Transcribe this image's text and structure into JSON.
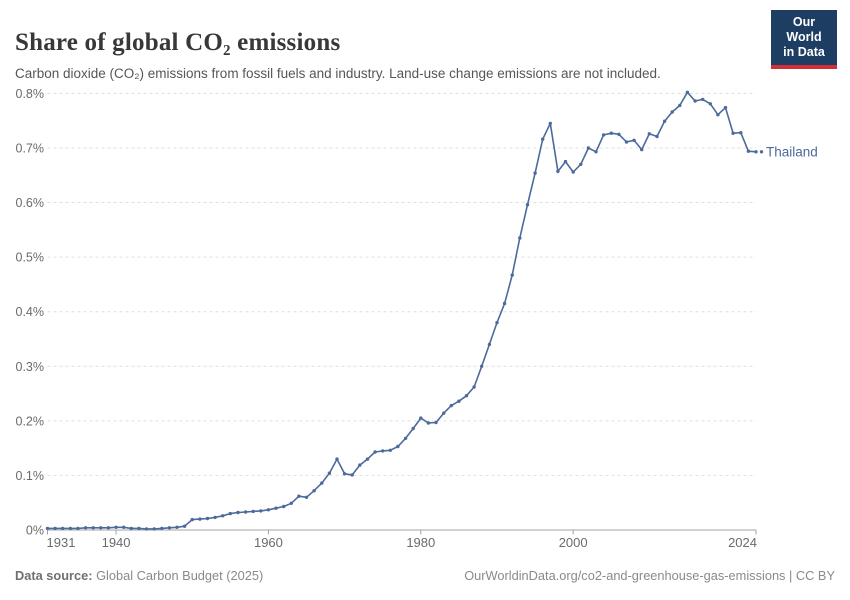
{
  "header": {
    "title": "Share of global CO₂ emissions",
    "subtitle": "Carbon dioxide (CO₂) emissions from fossil fuels and industry. Land-use change emissions are not included.",
    "logo": {
      "line1": "Our World",
      "line2": "in Data",
      "bg_color": "#1d3d63",
      "accent_color": "#d13038"
    }
  },
  "chart_data": {
    "type": "line",
    "title": "Share of global CO₂ emissions",
    "entity": "Thailand",
    "xlabel": "",
    "ylabel": "",
    "xlim": [
      1931,
      2024
    ],
    "ylim": [
      0,
      0.8
    ],
    "grid": true,
    "legend_position": "end-of-line",
    "x_ticks": [
      {
        "v": 1931,
        "label": "1931"
      },
      {
        "v": 1940,
        "label": "1940"
      },
      {
        "v": 1960,
        "label": "1960"
      },
      {
        "v": 1980,
        "label": "1980"
      },
      {
        "v": 2000,
        "label": "2000"
      },
      {
        "v": 2024,
        "label": "2024"
      }
    ],
    "y_ticks": [
      {
        "v": 0,
        "label": "0%"
      },
      {
        "v": 0.1,
        "label": "0.1%"
      },
      {
        "v": 0.2,
        "label": "0.2%"
      },
      {
        "v": 0.3,
        "label": "0.3%"
      },
      {
        "v": 0.4,
        "label": "0.4%"
      },
      {
        "v": 0.5,
        "label": "0.5%"
      },
      {
        "v": 0.6,
        "label": "0.6%"
      },
      {
        "v": 0.7,
        "label": "0.7%"
      },
      {
        "v": 0.8,
        "label": "0.8%"
      }
    ],
    "series": [
      {
        "name": "Thailand",
        "color": "#4c6a9c",
        "x_start": 1931,
        "x_step": 1,
        "values": [
          0.003,
          0.003,
          0.003,
          0.003,
          0.003,
          0.004,
          0.004,
          0.004,
          0.004,
          0.005,
          0.005,
          0.003,
          0.003,
          0.002,
          0.002,
          0.003,
          0.004,
          0.005,
          0.007,
          0.019,
          0.02,
          0.021,
          0.023,
          0.026,
          0.03,
          0.032,
          0.033,
          0.034,
          0.035,
          0.037,
          0.04,
          0.043,
          0.049,
          0.062,
          0.06,
          0.072,
          0.086,
          0.104,
          0.13,
          0.103,
          0.101,
          0.119,
          0.13,
          0.143,
          0.145,
          0.146,
          0.153,
          0.168,
          0.186,
          0.205,
          0.196,
          0.197,
          0.214,
          0.228,
          0.236,
          0.246,
          0.262,
          0.3,
          0.34,
          0.38,
          0.415,
          0.467,
          0.535,
          0.596,
          0.654,
          0.716,
          0.745,
          0.657,
          0.675,
          0.656,
          0.67,
          0.7,
          0.693,
          0.724,
          0.727,
          0.725,
          0.711,
          0.714,
          0.697,
          0.726,
          0.721,
          0.749,
          0.766,
          0.778,
          0.802,
          0.786,
          0.789,
          0.781,
          0.761,
          0.774,
          0.727,
          0.728,
          0.694,
          0.693
        ]
      }
    ],
    "colors": {
      "grid": "#dfdfdf",
      "axis": "#a3a3a3",
      "tick_label": "#6b6b6b"
    }
  },
  "footer": {
    "datasource_label": "Data source:",
    "datasource_value": " Global Carbon Budget (2025)",
    "attribution": "OurWorldinData.org/co2-and-greenhouse-gas-emissions | CC BY"
  }
}
